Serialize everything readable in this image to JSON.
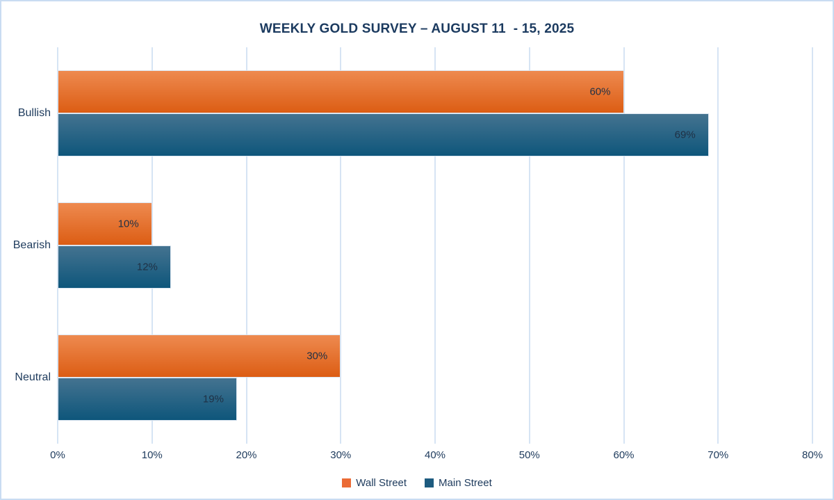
{
  "chart_data": {
    "type": "bar",
    "orientation": "horizontal",
    "title": "WEEKLY GOLD SURVEY – AUGUST 11  - 15, 2025",
    "categories": [
      "Bullish",
      "Bearish",
      "Neutral"
    ],
    "series": [
      {
        "name": "Wall Street",
        "values": [
          60,
          10,
          30
        ],
        "labels": [
          "60%",
          "10%",
          "30%"
        ],
        "gradient_top": "#ee8a50",
        "gradient_bottom": "#dc5d14",
        "legend_color": "#eb6b35"
      },
      {
        "name": "Main Street",
        "values": [
          69,
          12,
          19
        ],
        "labels": [
          "69%",
          "12%",
          "19%"
        ],
        "gradient_top": "#447390",
        "gradient_bottom": "#0e567b",
        "legend_color": "#1d5b7f"
      }
    ],
    "value_suffix": "%",
    "xlim": [
      0,
      80
    ],
    "x_tick_step": 10,
    "x_tick_labels": [
      "0%",
      "10%",
      "20%",
      "30%",
      "40%",
      "50%",
      "60%",
      "70%",
      "80%"
    ],
    "grid": true,
    "legend_position": "bottom"
  },
  "colors": {
    "title_text": "#1b3a5f",
    "axis_text": "#1d3a5c",
    "data_label_text": "#1f3044",
    "gridline": "#d6e4f4",
    "bar_border": "#dce6f1",
    "frame_border": "#c9dcf2",
    "background": "#ffffff"
  }
}
